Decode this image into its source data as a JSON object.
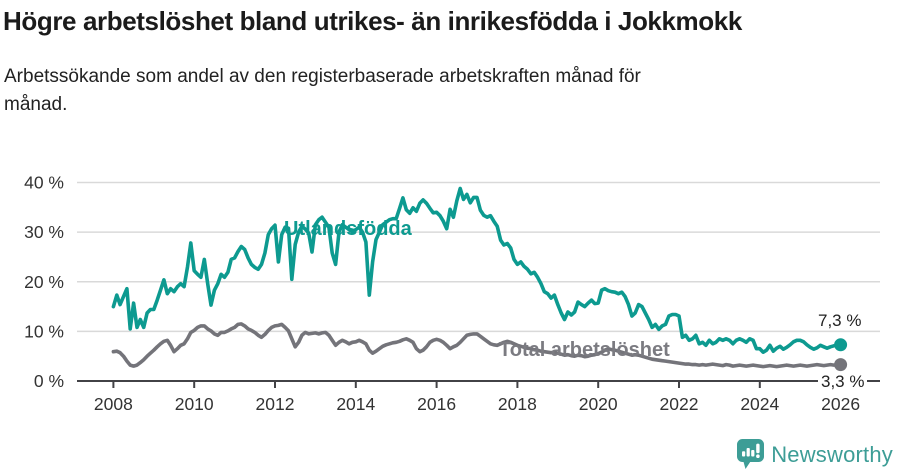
{
  "header": {
    "title": "Högre arbetslöshet bland utrikes- än inrikesfödda i Jokkmokk",
    "subtitle": "Arbetssökande som andel av den registerbaserade arbetskraften månad för\nmånad."
  },
  "chart_data": {
    "type": "line",
    "title": "Högre arbetslöshet bland utrikes- än inrikesfödda i Jokkmokk",
    "subtitle": "Arbetssökande som andel av den registerbaserade arbetskraften månad för månad.",
    "x_start": "2008-01",
    "x_end": "2026-01",
    "x_step": "1 month",
    "xticks": [
      2008,
      2010,
      2012,
      2014,
      2016,
      2018,
      2020,
      2022,
      2024,
      2026
    ],
    "ytick_values": [
      0,
      10,
      20,
      30,
      40
    ],
    "ytick_labels": [
      "0 %",
      "10 %",
      "20 %",
      "30 %",
      "40 %"
    ],
    "ylim": [
      0,
      40
    ],
    "grid": "horizontal",
    "legend_position": "inline-annotations",
    "colors": {
      "accent_teal": "#0d9a90",
      "line_gray": "#74747a",
      "axis": "#424246",
      "gridline": "#d9d9d9",
      "tick_text": "#333333"
    },
    "series": [
      {
        "name": "Utlandsfödda",
        "color": "#0d9a90",
        "end_label": "7,3 %",
        "end_value": 7.3,
        "values": [
          15.0,
          17.3,
          15.4,
          17.0,
          18.6,
          10.5,
          15.7,
          10.8,
          12.4,
          10.8,
          13.7,
          14.4,
          14.4,
          16.3,
          18.3,
          20.4,
          17.6,
          18.6,
          18.0,
          19.0,
          19.6,
          19.0,
          23.0,
          27.8,
          22.2,
          21.5,
          20.9,
          24.5,
          19.6,
          15.3,
          18.3,
          19.6,
          21.5,
          20.9,
          21.9,
          24.5,
          24.8,
          26.1,
          27.1,
          26.5,
          24.8,
          23.5,
          22.9,
          22.5,
          23.5,
          25.8,
          29.5,
          30.7,
          31.4,
          24.0,
          29.5,
          31.0,
          30.8,
          20.5,
          27.5,
          30.0,
          31.2,
          30.6,
          29.8,
          26.0,
          31.5,
          32.5,
          33.0,
          32.0,
          31.0,
          25.8,
          23.5,
          30.0,
          31.5,
          31.0,
          30.5,
          30.0,
          30.5,
          31.0,
          30.0,
          28.0,
          17.3,
          24.0,
          28.5,
          30.0,
          31.5,
          32.0,
          32.5,
          32.7,
          32.7,
          34.8,
          36.9,
          34.5,
          33.8,
          34.9,
          34.2,
          35.8,
          36.5,
          35.8,
          34.8,
          33.9,
          34.0,
          33.3,
          32.2,
          30.7,
          34.6,
          33.0,
          36.3,
          38.8,
          36.6,
          37.6,
          35.9,
          37.0,
          37.0,
          34.4,
          33.4,
          33.0,
          33.3,
          32.2,
          31.2,
          28.4,
          27.4,
          27.7,
          26.8,
          24.5,
          23.5,
          24.0,
          23.1,
          22.5,
          21.6,
          21.9,
          20.9,
          19.6,
          18.0,
          17.6,
          16.7,
          17.3,
          15.4,
          13.7,
          12.4,
          13.9,
          13.3,
          13.9,
          15.9,
          15.4,
          15.0,
          15.7,
          16.3,
          15.6,
          15.7,
          18.3,
          18.6,
          18.2,
          18.0,
          17.9,
          17.6,
          17.9,
          17.0,
          15.4,
          13.1,
          13.7,
          15.4,
          15.0,
          13.7,
          12.4,
          10.8,
          11.4,
          10.4,
          11.1,
          11.4,
          13.1,
          13.4,
          13.4,
          13.1,
          8.8,
          9.2,
          8.2,
          8.5,
          9.2,
          7.5,
          7.8,
          7.2,
          8.2,
          7.5,
          7.8,
          8.5,
          8.2,
          8.5,
          8.2,
          7.5,
          8.2,
          8.5,
          8.2,
          7.8,
          8.5,
          8.2,
          6.5,
          6.5,
          5.8,
          6.2,
          7.2,
          6.0,
          6.6,
          7.0,
          6.4,
          6.8,
          7.3,
          7.9,
          8.2,
          8.2,
          7.9,
          7.3,
          6.8,
          6.4,
          6.7,
          7.2,
          6.9,
          6.6,
          6.9,
          7.1,
          7.3,
          7.3
        ]
      },
      {
        "name": "Total arbetslöshet",
        "color": "#74747a",
        "end_label": "3,3 %",
        "end_value": 3.3,
        "values": [
          5.9,
          6.0,
          5.7,
          5.0,
          4.0,
          3.2,
          3.0,
          3.2,
          3.7,
          4.3,
          5.0,
          5.6,
          6.2,
          6.9,
          7.5,
          8.0,
          8.2,
          7.2,
          5.9,
          6.5,
          7.2,
          7.5,
          8.5,
          9.8,
          10.2,
          10.8,
          11.1,
          11.1,
          10.5,
          10.1,
          9.5,
          9.2,
          9.8,
          9.8,
          10.1,
          10.5,
          10.8,
          11.4,
          11.5,
          11.1,
          10.5,
          10.2,
          9.8,
          9.2,
          8.8,
          9.4,
          10.2,
          10.8,
          11.1,
          11.2,
          11.4,
          10.8,
          10.1,
          8.5,
          6.9,
          7.8,
          9.2,
          9.8,
          9.5,
          9.6,
          9.7,
          9.5,
          9.7,
          9.8,
          9.2,
          8.2,
          7.2,
          7.8,
          8.2,
          7.9,
          7.5,
          7.8,
          7.9,
          8.2,
          7.9,
          7.5,
          6.2,
          5.6,
          6.0,
          6.5,
          7.0,
          7.3,
          7.5,
          7.7,
          7.8,
          8.0,
          8.3,
          8.5,
          8.2,
          7.8,
          6.5,
          5.9,
          6.2,
          6.9,
          7.8,
          8.2,
          8.4,
          8.2,
          7.8,
          7.2,
          6.5,
          6.9,
          7.2,
          7.8,
          8.5,
          9.2,
          9.4,
          9.5,
          9.5,
          9.0,
          8.5,
          8.0,
          7.5,
          7.3,
          7.2,
          7.5,
          7.8,
          8.0,
          7.8,
          7.5,
          7.2,
          7.0,
          6.8,
          6.6,
          6.5,
          6.3,
          6.2,
          6.0,
          5.9,
          5.8,
          5.7,
          5.8,
          5.6,
          5.4,
          5.2,
          5.3,
          5.1,
          5.0,
          5.2,
          5.1,
          4.9,
          5.0,
          5.2,
          5.3,
          5.5,
          5.8,
          6.2,
          6.5,
          6.3,
          6.2,
          6.0,
          5.8,
          5.6,
          5.4,
          5.2,
          5.3,
          5.2,
          5.0,
          4.8,
          4.6,
          4.4,
          4.3,
          4.2,
          4.1,
          4.0,
          3.9,
          3.8,
          3.7,
          3.6,
          3.5,
          3.4,
          3.4,
          3.3,
          3.3,
          3.2,
          3.3,
          3.2,
          3.3,
          3.4,
          3.3,
          3.2,
          3.1,
          3.3,
          3.2,
          3.0,
          3.1,
          3.2,
          3.1,
          3.0,
          3.1,
          3.2,
          3.1,
          3.0,
          2.9,
          3.0,
          3.1,
          3.0,
          2.9,
          3.0,
          3.1,
          3.2,
          3.1,
          3.0,
          3.1,
          3.2,
          3.1,
          3.0,
          3.1,
          3.2,
          3.3,
          3.2,
          3.1,
          3.2,
          3.3,
          3.2,
          3.3,
          3.3
        ]
      }
    ]
  },
  "footer": {
    "brand": "Newsworthy",
    "logo_color": "#3d9d96"
  }
}
